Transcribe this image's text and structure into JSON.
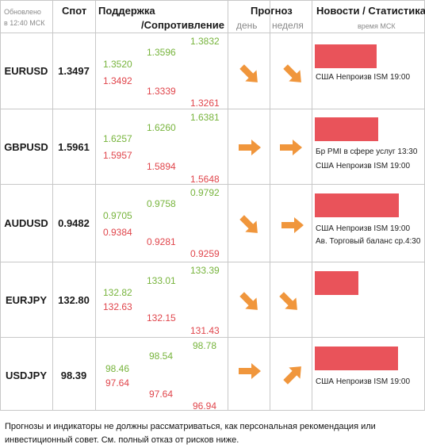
{
  "header": {
    "updated_line1": "Обновлено",
    "updated_line2": "в 12:40 МСК",
    "spot": "Спот",
    "support": "Поддержка",
    "resistance": "/Сопротивление",
    "forecast": "Прогноз",
    "day": "день",
    "week": "неделя",
    "news": "Новости / Статистика",
    "time_label": "время МСК"
  },
  "colors": {
    "support": "#77b43c",
    "resistance": "#e0454b",
    "arrow": "#f0963c",
    "bar": "#e9535a"
  },
  "rows": [
    {
      "pair": "EURUSD",
      "spot": "1.3497",
      "s1": "1.3520",
      "r1": "1.3492",
      "s2": "1.3596",
      "r2": "1.3339",
      "s3": "1.3832",
      "r3": "1.3261",
      "day_dir": "down-right",
      "week_dir": "down-right",
      "bar_fraction": 0.58,
      "news": [
        "США Непроизв ISM 19:00"
      ]
    },
    {
      "pair": "GBPUSD",
      "spot": "1.5961",
      "s1": "1.6257",
      "r1": "1.5957",
      "s2": "1.6260",
      "r2": "1.5894",
      "s3": "1.6381",
      "r3": "1.5648",
      "day_dir": "right",
      "week_dir": "right",
      "bar_fraction": 0.6,
      "news": [
        "Бр PMI в сфере услуг 13:30",
        "США Непроизв ISM 19:00"
      ]
    },
    {
      "pair": "AUDUSD",
      "spot": "0.9482",
      "s1": "0.9705",
      "r1": "0.9384",
      "s2": "0.9758",
      "r2": "0.9281",
      "s3": "0.9792",
      "r3": "0.9259",
      "day_dir": "down-right",
      "week_dir": "right",
      "bar_fraction": 0.79,
      "news": [
        "США Непроизв ISM 19:00",
        "Ав. Торговый баланс ср.4:30"
      ]
    },
    {
      "pair": "EURJPY",
      "spot": "132.80",
      "s1": "132.82",
      "r1": "132.63",
      "s2": "133.01",
      "r2": "132.15",
      "s3": "133.39",
      "r3": "131.43",
      "day_dir": "down-right",
      "week_dir": "down-right",
      "bar_fraction": 0.41,
      "news": []
    },
    {
      "pair": "USDJPY",
      "spot": "98.39",
      "s1": "98.46",
      "r1": "97.64",
      "s2": "98.54",
      "r2": "97.64",
      "s3": "98.78",
      "r3": "96.94",
      "day_dir": "right",
      "week_dir": "up-right",
      "bar_fraction": 0.78,
      "news": [
        "США Непроизв ISM 19:00"
      ]
    }
  ],
  "disclaimer": "Прогнозы и индикаторы не должны рассматриваться, как персональная рекомендация или инвестиционный совет. См. полный отказ от рисков ниже."
}
